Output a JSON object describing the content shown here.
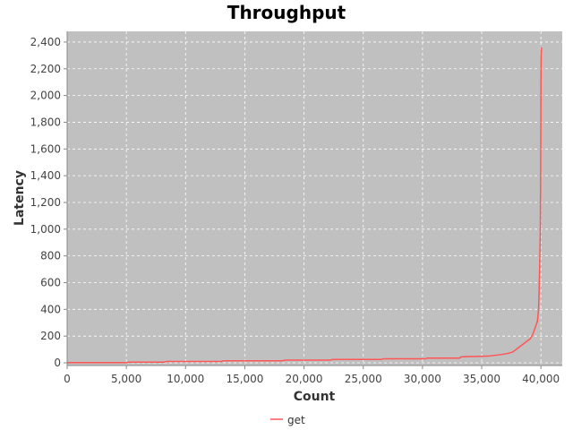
{
  "chart_data": {
    "type": "line",
    "title": "Throughput",
    "xlabel": "Count",
    "ylabel": "Latency",
    "xlim": [
      0,
      41800
    ],
    "ylim": [
      -20,
      2480
    ],
    "x_ticks": [
      0,
      5000,
      10000,
      15000,
      20000,
      25000,
      30000,
      35000,
      40000
    ],
    "x_tick_labels": [
      "0",
      "5,000",
      "10,000",
      "15,000",
      "20,000",
      "25,000",
      "30,000",
      "35,000",
      "40,000"
    ],
    "y_ticks": [
      0,
      200,
      400,
      600,
      800,
      1000,
      1200,
      1400,
      1600,
      1800,
      2000,
      2200,
      2400
    ],
    "y_tick_labels": [
      "0",
      "200",
      "400",
      "600",
      "800",
      "1,000",
      "1,200",
      "1,400",
      "1,600",
      "1,800",
      "2,000",
      "2,200",
      "2,400"
    ],
    "grid": true,
    "legend_position": "bottom-center",
    "colors": {
      "plot_background": "#c0c0c0",
      "gridline": "#ffffff",
      "series": "#ff5555"
    },
    "series": [
      {
        "name": "get",
        "x": [
          0,
          5000,
          5200,
          8200,
          8400,
          13000,
          13200,
          18200,
          18400,
          22200,
          22400,
          26500,
          26700,
          30200,
          30400,
          33100,
          33300,
          35500,
          36500,
          37200,
          37600,
          37900,
          38200,
          38500,
          38800,
          39100,
          39300,
          39500,
          39700,
          39800,
          39850,
          39900,
          39930,
          39950,
          39970,
          39990,
          40000,
          40020,
          40050
        ],
        "y": [
          2,
          2,
          5,
          5,
          10,
          10,
          15,
          15,
          20,
          20,
          25,
          25,
          30,
          30,
          35,
          35,
          45,
          50,
          60,
          70,
          80,
          100,
          120,
          140,
          160,
          180,
          210,
          260,
          310,
          400,
          550,
          750,
          900,
          1050,
          1300,
          1700,
          2100,
          2300,
          2360
        ]
      }
    ]
  }
}
